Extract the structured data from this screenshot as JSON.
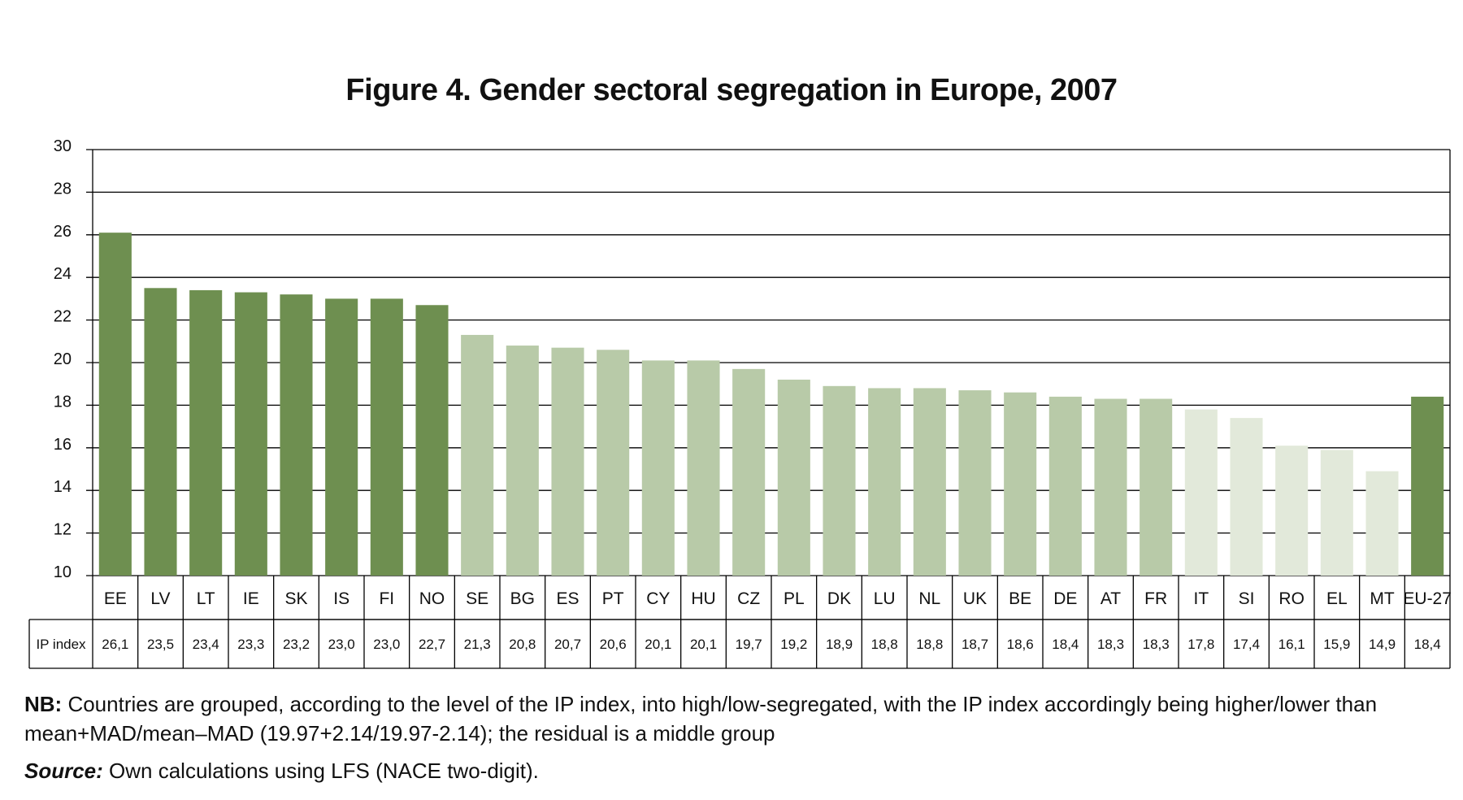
{
  "title": "Figure 4. Gender sectoral segregation in Europe, 2007",
  "row_label": "IP index",
  "notes": {
    "nb_label": "NB:",
    "nb_text": " Countries are grouped, according to the level of the IP index, into high/low-segregated, with the IP index accordingly being higher/lower than mean+MAD/mean–MAD (19.97+2.14/19.97-2.14); the residual is a middle group",
    "source_label": "Source:",
    "source_text": " Own calculations using LFS (NACE two-digit)."
  },
  "colors": {
    "high": "#6e8f50",
    "middle": "#b8caa8",
    "low": "#e2e9da",
    "grid": "#000000"
  },
  "chart_data": {
    "type": "bar",
    "title": "Figure 4. Gender sectoral segregation in Europe, 2007",
    "ylim": [
      10,
      30
    ],
    "yticks": [
      10,
      12,
      14,
      16,
      18,
      20,
      22,
      24,
      26,
      28,
      30
    ],
    "grid": true,
    "categories": [
      "EE",
      "LV",
      "LT",
      "IE",
      "SK",
      "IS",
      "FI",
      "NO",
      "SE",
      "BG",
      "ES",
      "PT",
      "CY",
      "HU",
      "CZ",
      "PL",
      "DK",
      "LU",
      "NL",
      "UK",
      "BE",
      "DE",
      "AT",
      "FR",
      "IT",
      "SI",
      "RO",
      "EL",
      "MT",
      "EU-27"
    ],
    "values": [
      26.1,
      23.5,
      23.4,
      23.3,
      23.2,
      23.0,
      23.0,
      22.7,
      21.3,
      20.8,
      20.7,
      20.6,
      20.1,
      20.1,
      19.7,
      19.2,
      18.9,
      18.8,
      18.8,
      18.7,
      18.6,
      18.4,
      18.3,
      18.3,
      17.8,
      17.4,
      16.1,
      15.9,
      14.9,
      18.4
    ],
    "value_labels": [
      "26,1",
      "23,5",
      "23,4",
      "23,3",
      "23,2",
      "23,0",
      "23,0",
      "22,7",
      "21,3",
      "20,8",
      "20,7",
      "20,6",
      "20,1",
      "20,1",
      "19,7",
      "19,2",
      "18,9",
      "18,8",
      "18,8",
      "18,7",
      "18,6",
      "18,4",
      "18,3",
      "18,3",
      "17,8",
      "17,4",
      "16,1",
      "15,9",
      "14,9",
      "18,4"
    ],
    "groups": [
      "high",
      "high",
      "high",
      "high",
      "high",
      "high",
      "high",
      "high",
      "middle",
      "middle",
      "middle",
      "middle",
      "middle",
      "middle",
      "middle",
      "middle",
      "middle",
      "middle",
      "middle",
      "middle",
      "middle",
      "middle",
      "middle",
      "middle",
      "low",
      "low",
      "low",
      "low",
      "low",
      "high"
    ]
  }
}
